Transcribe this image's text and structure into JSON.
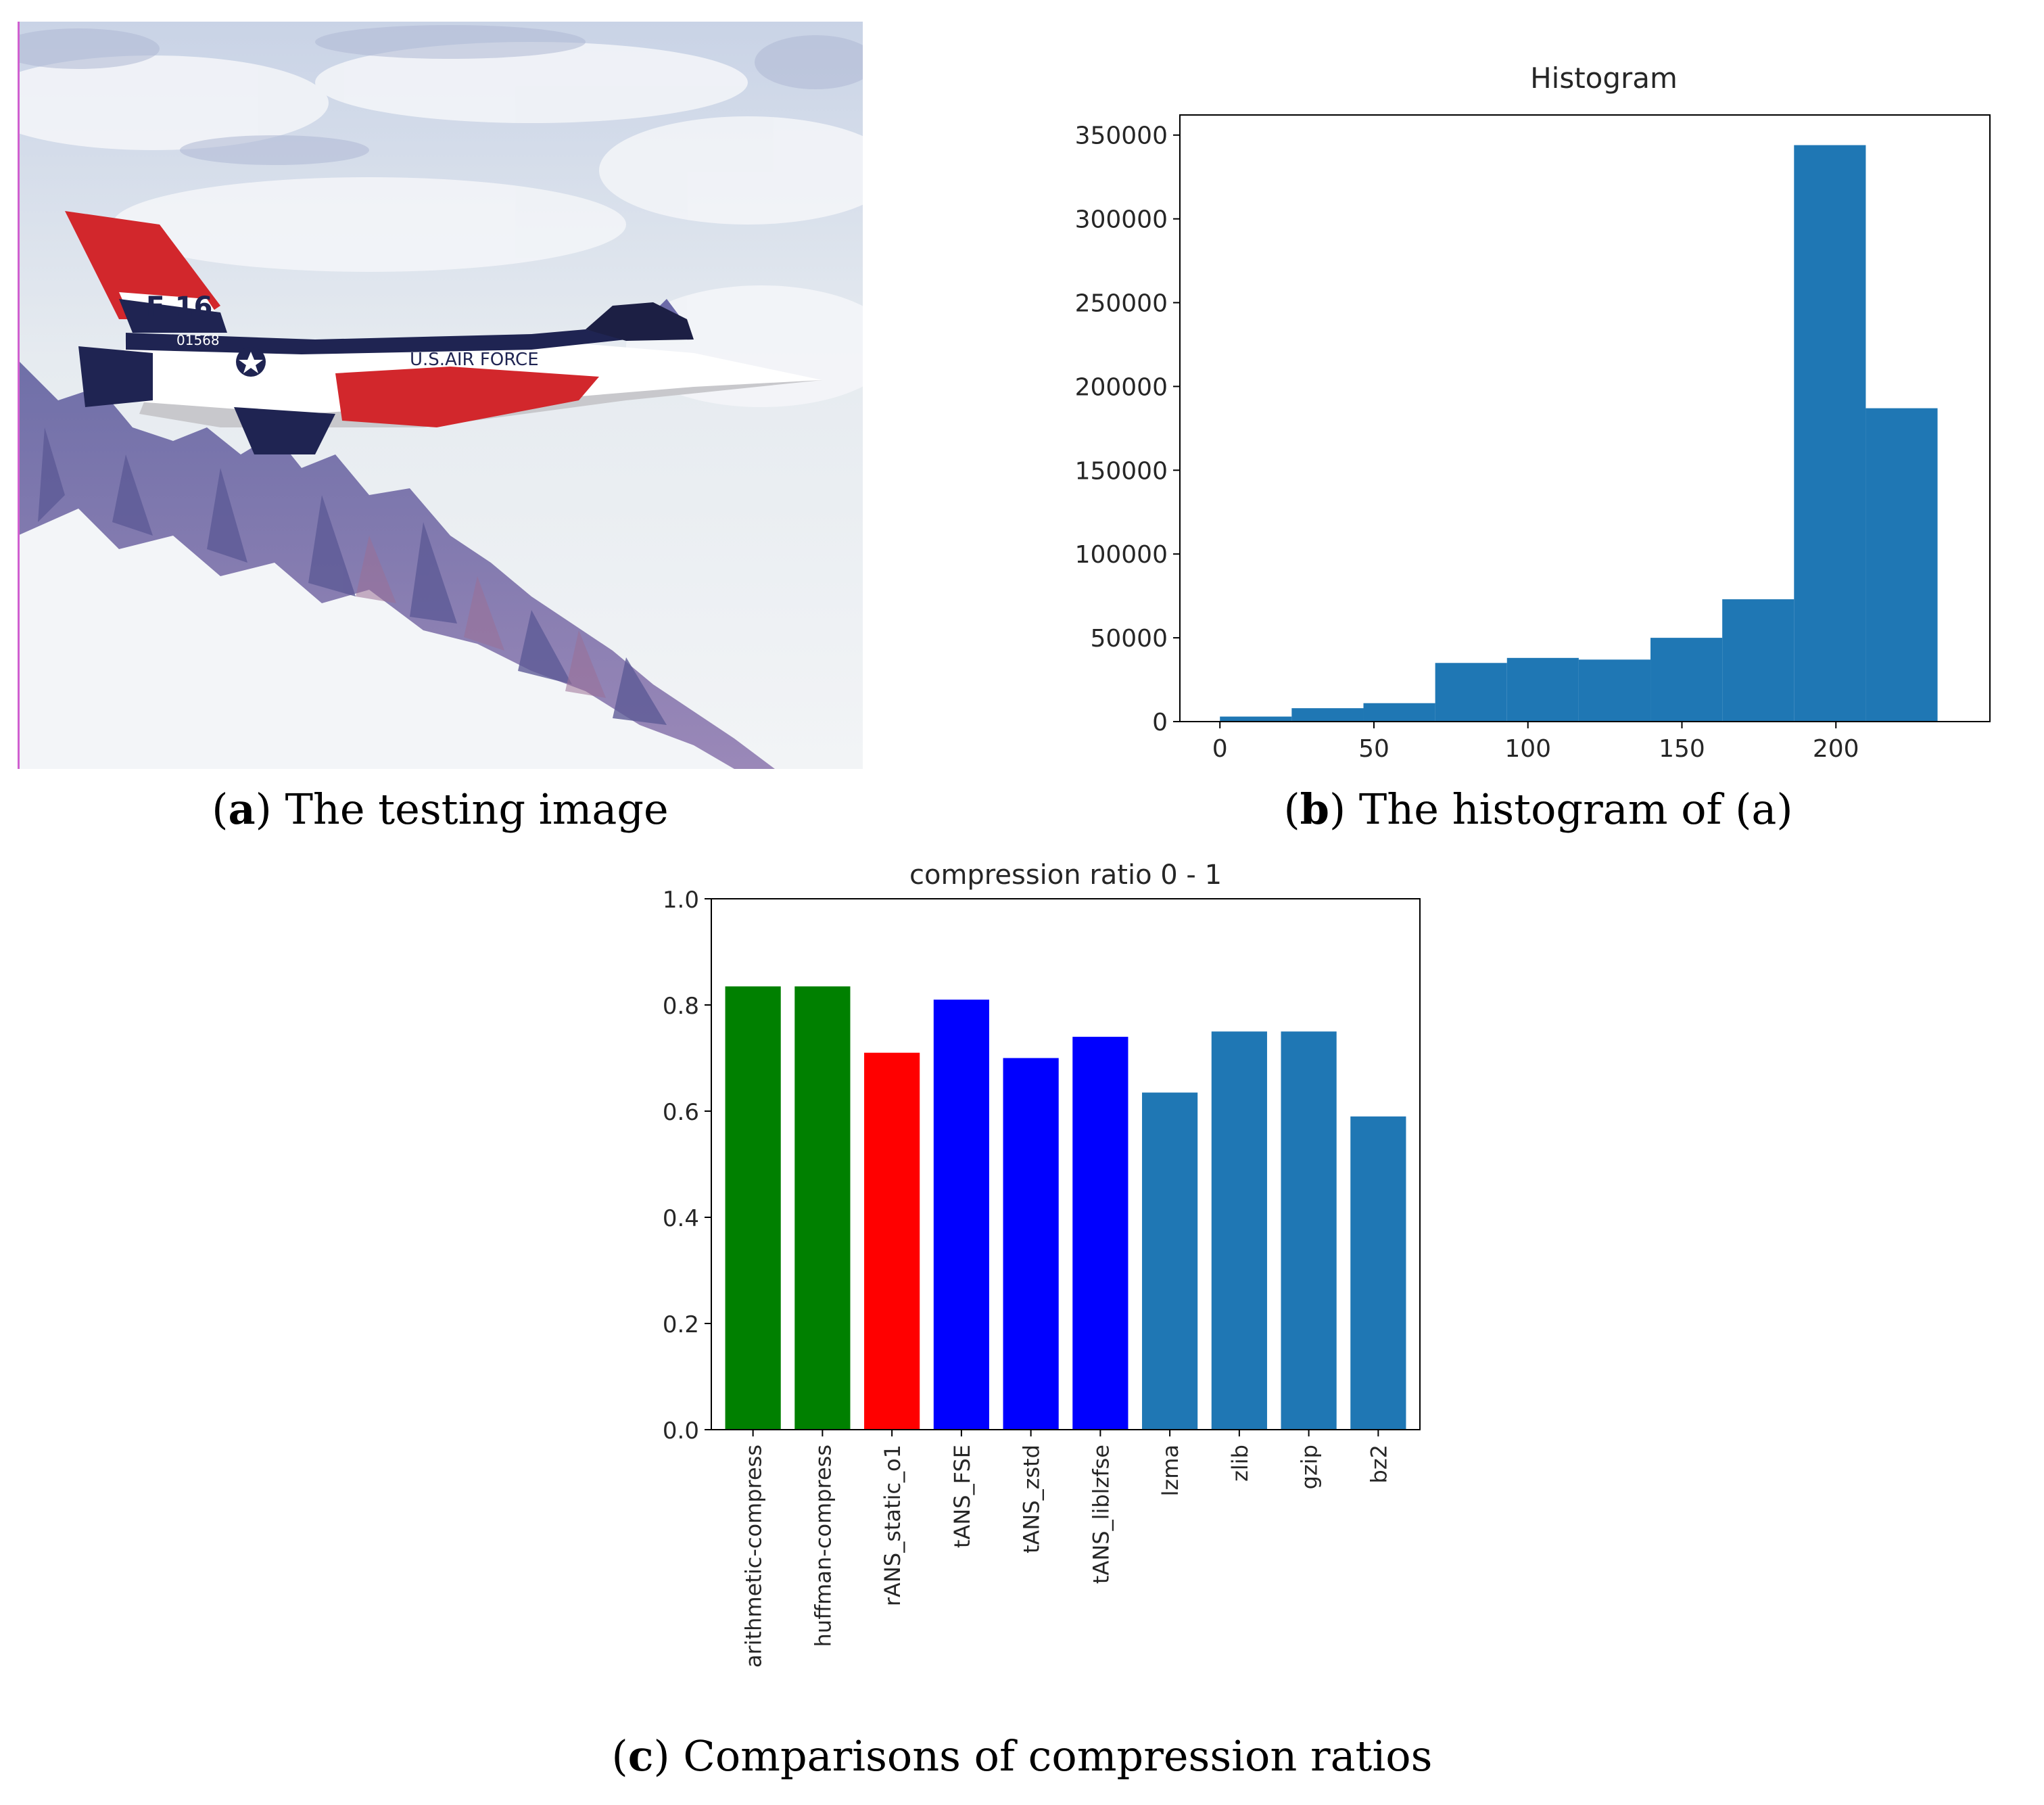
{
  "figures": {
    "a": {
      "letter": "a",
      "text": "The testing image"
    },
    "b": {
      "letter": "b",
      "text": "The histogram of (a)"
    },
    "c": {
      "letter": "c",
      "text": "Comparisons of compression ratios"
    }
  },
  "photo_text": {
    "tail_code": "F-16",
    "serial": "01568",
    "fuselage": "U.S.AIR FORCE"
  },
  "colors": {
    "hist_bar": "#1f77b4",
    "green": "#008000",
    "red": "#ff0000",
    "blue": "#0000ff",
    "default": "#1f77b4"
  },
  "chart_data": [
    {
      "type": "bar",
      "title": "Histogram",
      "xlabel": "",
      "ylabel": "",
      "bin_edges": [
        0,
        23.3,
        46.6,
        69.9,
        93.2,
        116.5,
        139.8,
        163.1,
        186.4,
        209.7,
        233
      ],
      "values": [
        3000,
        8000,
        11000,
        35000,
        38000,
        37000,
        50000,
        73000,
        344000,
        187000
      ],
      "xlim": [
        -13,
        250
      ],
      "ylim": [
        0,
        362000
      ],
      "xticks": [
        0,
        50,
        100,
        150,
        200
      ],
      "yticks": [
        0,
        50000,
        100000,
        150000,
        200000,
        250000,
        300000,
        350000
      ],
      "grid": false,
      "legend": "none"
    },
    {
      "type": "bar",
      "title": "compression ratio 0 - 1",
      "xlabel": "",
      "ylabel": "",
      "categories": [
        "arithmetic-compress",
        "huffman-compress",
        "rANS_static_o1",
        "tANS_FSE",
        "tANS_zstd",
        "tANS_liblzfse",
        "lzma",
        "zlib",
        "gzip",
        "bz2"
      ],
      "values": [
        0.835,
        0.835,
        0.71,
        0.81,
        0.7,
        0.74,
        0.635,
        0.75,
        0.75,
        0.59
      ],
      "bar_colors": [
        "#008000",
        "#008000",
        "#ff0000",
        "#0000ff",
        "#0000ff",
        "#0000ff",
        "#1f77b4",
        "#1f77b4",
        "#1f77b4",
        "#1f77b4"
      ],
      "ylim": [
        0,
        1.0
      ],
      "yticks": [
        0.0,
        0.2,
        0.4,
        0.6,
        0.8,
        1.0
      ],
      "grid": false,
      "legend": "none"
    }
  ]
}
